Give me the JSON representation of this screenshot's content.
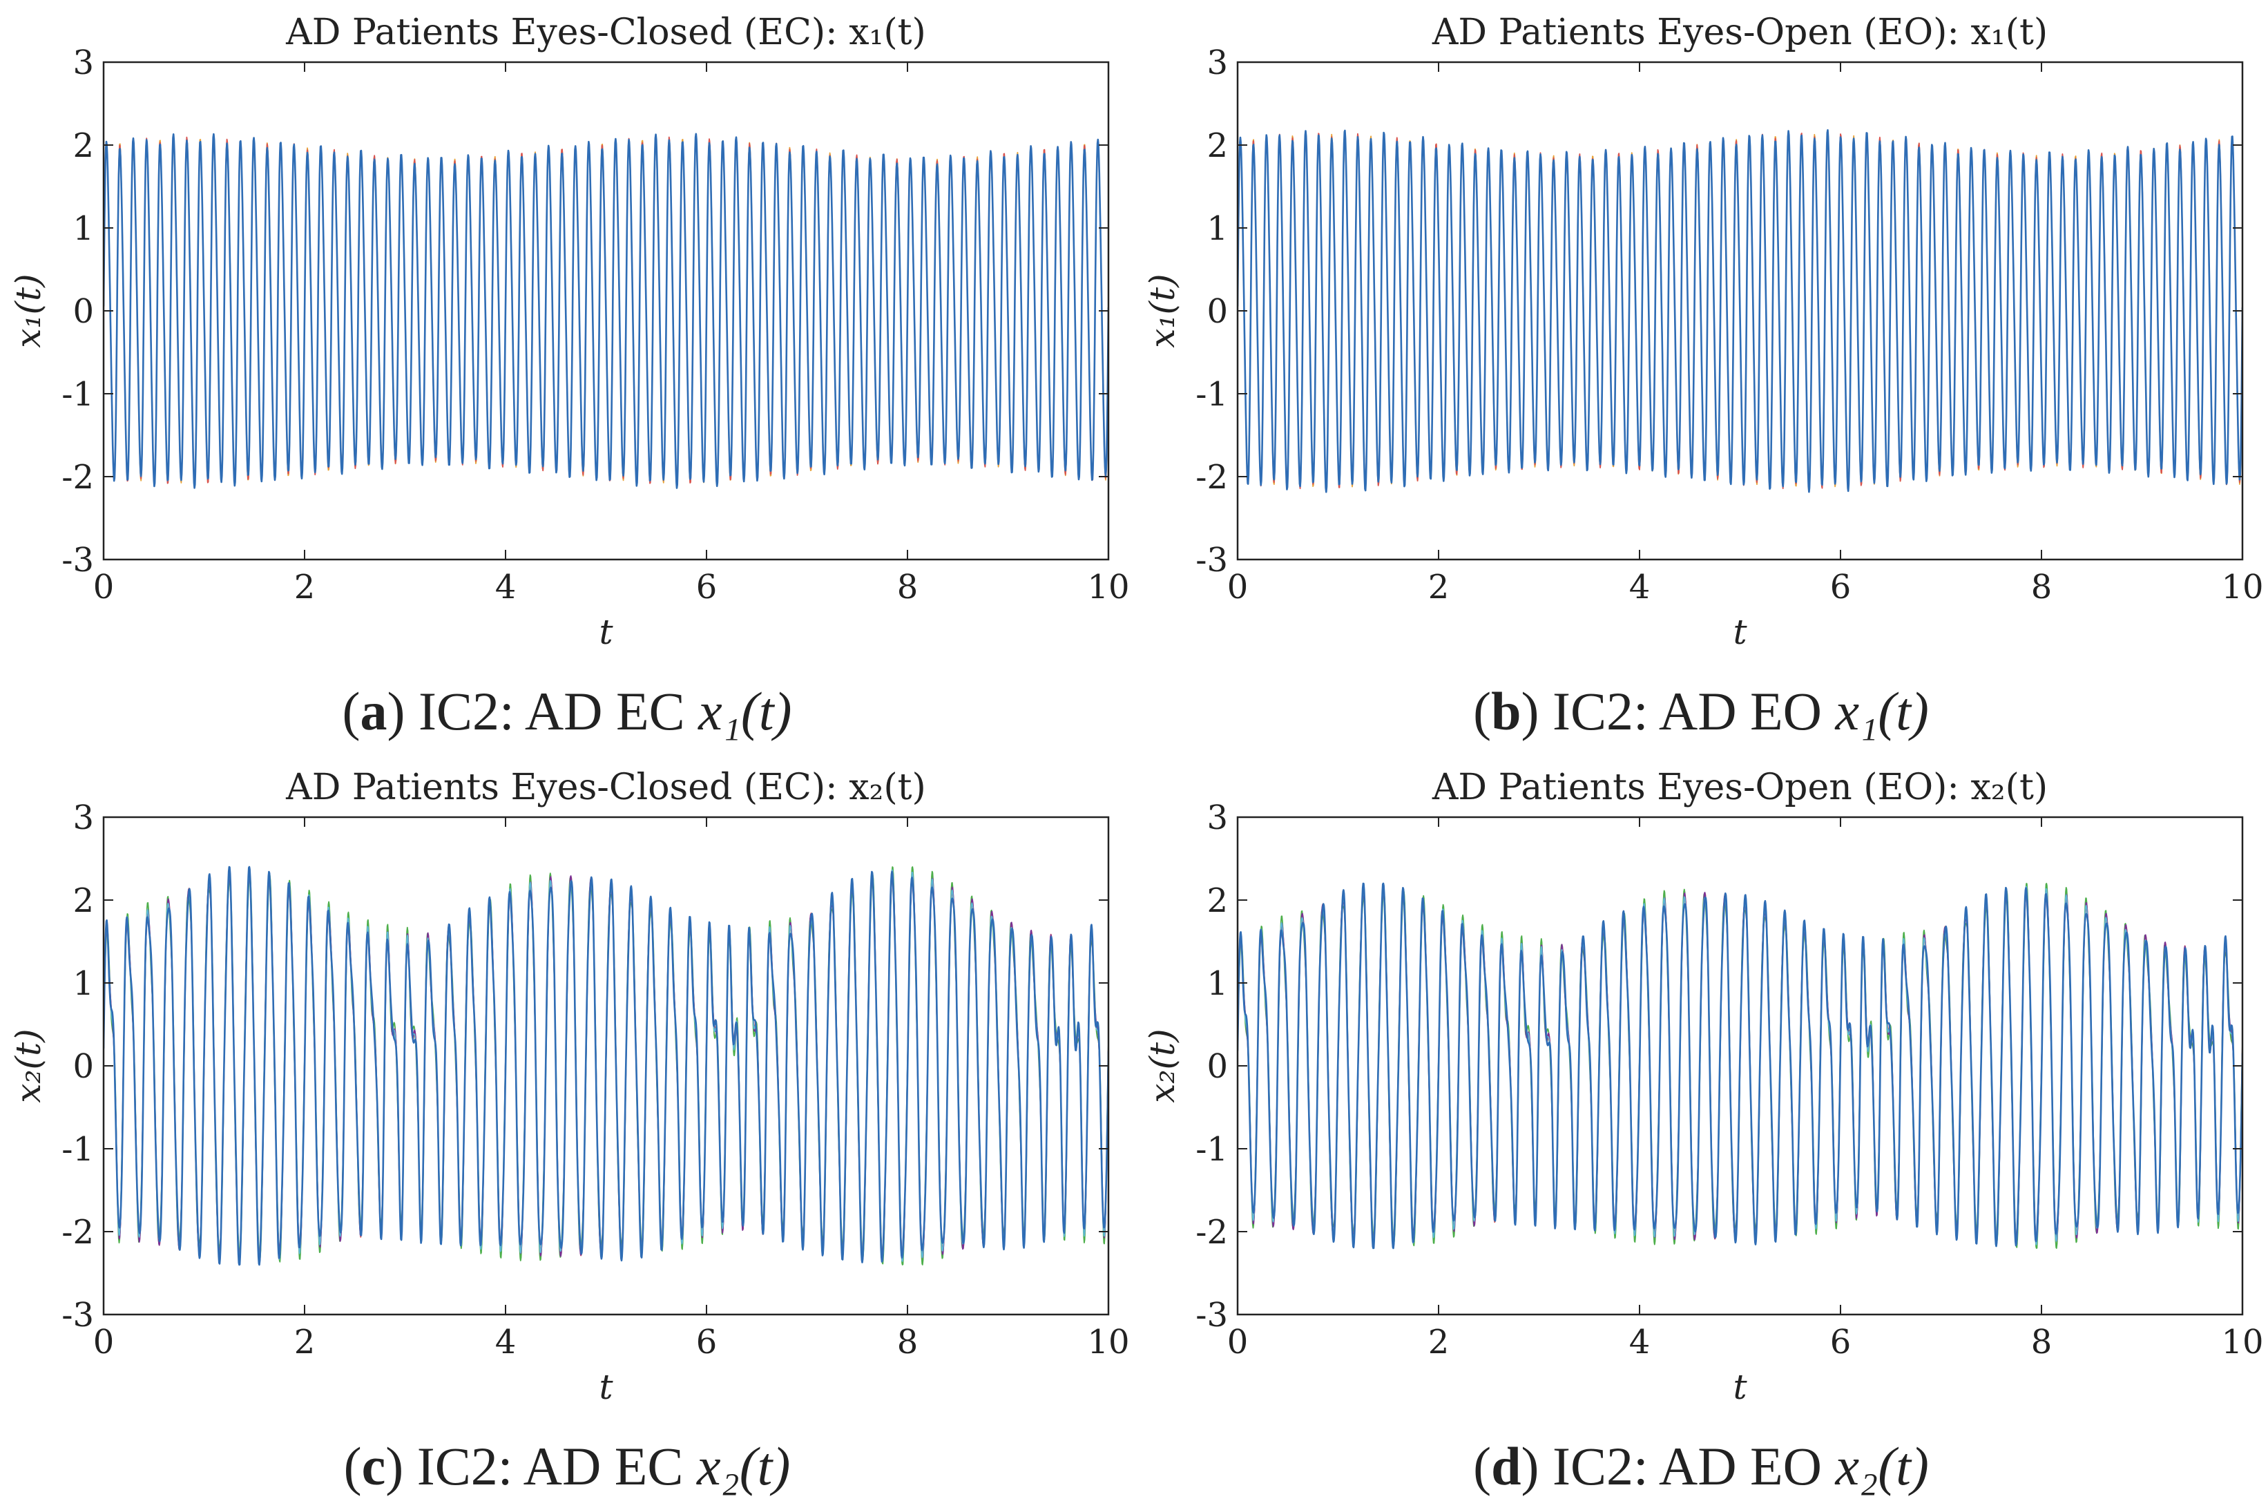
{
  "figure": {
    "panels": [
      {
        "id": "a",
        "caption_label": "a",
        "caption_text": "IC2: AD EC",
        "caption_var": "x₁(t)",
        "colors": [
          "#e8a33a",
          "#d9534f",
          "#2f6db5"
        ]
      },
      {
        "id": "b",
        "caption_label": "b",
        "caption_text": "IC2: AD EO",
        "caption_var": "x₁(t)",
        "colors": [
          "#e8a33a",
          "#d9534f",
          "#2f6db5"
        ]
      },
      {
        "id": "c",
        "caption_label": "c",
        "caption_text": "IC2: AD EC",
        "caption_var": "x₂(t)",
        "colors": [
          "#4daf4a",
          "#e8a33a",
          "#d9534f",
          "#7b3294",
          "#5bb8d4",
          "#2f6db5"
        ]
      },
      {
        "id": "d",
        "caption_label": "d",
        "caption_text": "IC2: AD EO",
        "caption_var": "x₂(t)",
        "colors": [
          "#4daf4a",
          "#e8a33a",
          "#d9534f",
          "#7b3294",
          "#5bb8d4",
          "#2f6db5"
        ]
      }
    ]
  },
  "chart_data": [
    {
      "type": "line",
      "title": "AD Patients Eyes-Closed (EC): x₁(t)",
      "xlabel": "t",
      "ylabel": "x₁(t)",
      "xlim": [
        0,
        10
      ],
      "ylim": [
        -3,
        3
      ],
      "xticks": [
        "0",
        "2",
        "4",
        "6",
        "8",
        "10"
      ],
      "yticks": [
        "-3",
        "-2",
        "-1",
        "0",
        "1",
        "2",
        "3"
      ],
      "grid": false,
      "series_count": 3,
      "signal": {
        "frequency": 7.5,
        "amplitude": 2.1,
        "min": -2.2,
        "max": 2.2
      }
    },
    {
      "type": "line",
      "title": "AD Patients Eyes-Open (EO): x₁(t)",
      "xlabel": "t",
      "ylabel": "x₁(t)",
      "xlim": [
        0,
        10
      ],
      "ylim": [
        -3,
        3
      ],
      "xticks": [
        "0",
        "2",
        "4",
        "6",
        "8",
        "10"
      ],
      "yticks": [
        "-3",
        "-2",
        "-1",
        "0",
        "1",
        "2",
        "3"
      ],
      "grid": false,
      "series_count": 3,
      "signal": {
        "frequency": 7.7,
        "amplitude": 2.15,
        "min": -2.25,
        "max": 2.25
      }
    },
    {
      "type": "line",
      "title": "AD Patients Eyes-Closed (EC): x₂(t)",
      "xlabel": "t",
      "ylabel": "x₂(t)",
      "xlim": [
        0,
        10
      ],
      "ylim": [
        -3,
        3
      ],
      "xticks": [
        "0",
        "2",
        "4",
        "6",
        "8",
        "10"
      ],
      "yticks": [
        "-3",
        "-2",
        "-1",
        "0",
        "1",
        "2",
        "3"
      ],
      "grid": false,
      "series_count": 6,
      "signal": {
        "frequency": 5.0,
        "amplitude": 2.3,
        "min": -2.4,
        "max": 2.4
      }
    },
    {
      "type": "line",
      "title": "AD Patients Eyes-Open (EO): x₂(t)",
      "xlabel": "t",
      "ylabel": "x₂(t)",
      "xlim": [
        0,
        10
      ],
      "ylim": [
        -3,
        3
      ],
      "xticks": [
        "0",
        "2",
        "4",
        "6",
        "8",
        "10"
      ],
      "yticks": [
        "-3",
        "-2",
        "-1",
        "0",
        "1",
        "2",
        "3"
      ],
      "grid": false,
      "series_count": 6,
      "signal": {
        "frequency": 5.0,
        "amplitude": 2.1,
        "min": -2.2,
        "max": 2.2
      }
    }
  ]
}
